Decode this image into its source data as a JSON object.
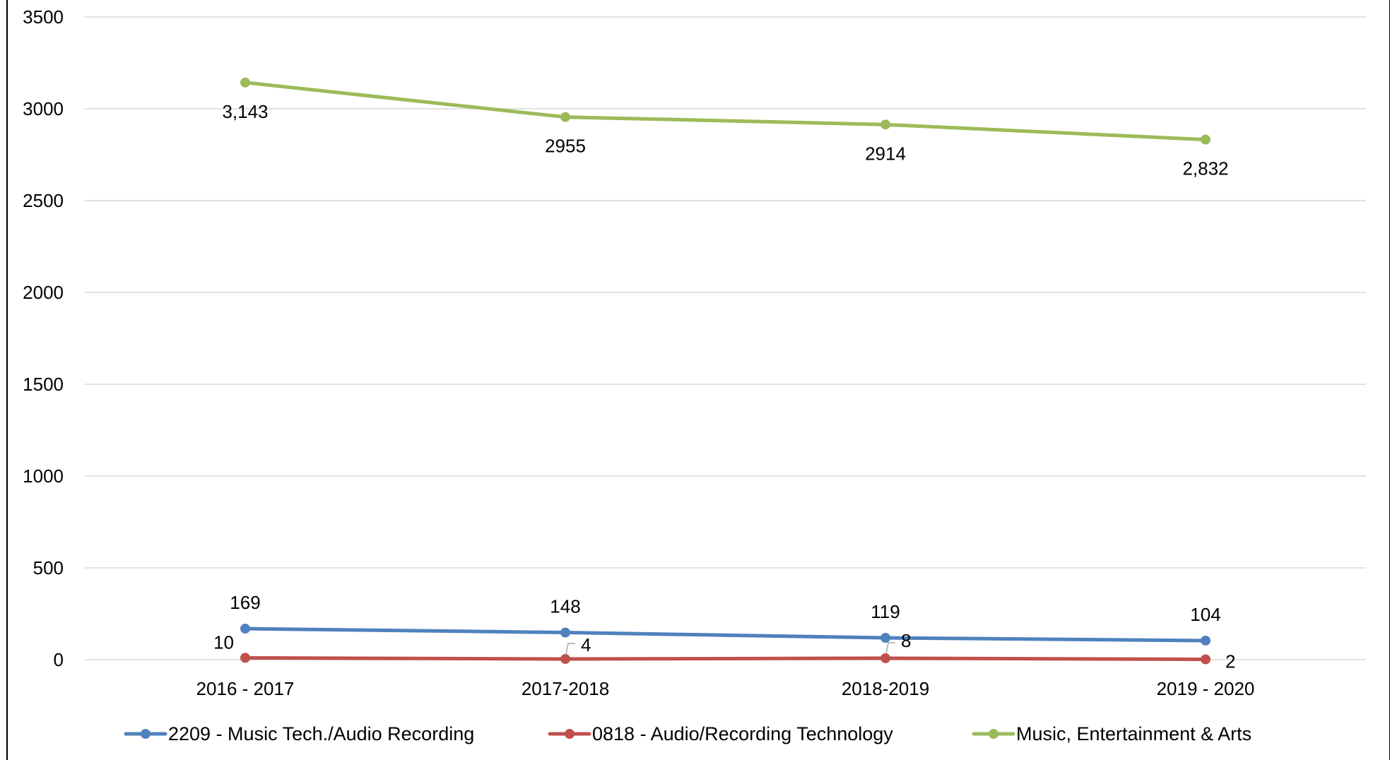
{
  "chart_data": {
    "type": "line",
    "title": "",
    "xlabel": "",
    "ylabel": "",
    "categories": [
      "2016 - 2017",
      "2017-2018",
      "2018-2019",
      "2019 - 2020"
    ],
    "ylim": [
      0,
      3500
    ],
    "yticks": [
      0,
      500,
      1000,
      1500,
      2000,
      2500,
      3000,
      3500
    ],
    "ytick_labels": [
      "0",
      "500",
      "1000",
      "1500",
      "2000",
      "2500",
      "3000",
      "3500"
    ],
    "grid": "horizontal",
    "legend_position": "bottom",
    "series": [
      {
        "name": "2209 - Music Tech./Audio Recording",
        "color": "#4f81bd",
        "values": [
          169,
          148,
          119,
          104
        ],
        "labels": [
          "169",
          "148",
          "119",
          "104"
        ]
      },
      {
        "name": "0818 - Audio/Recording Technology",
        "color": "#c0504d",
        "values": [
          10,
          4,
          8,
          2
        ],
        "labels": [
          "10",
          "4",
          "8",
          "2"
        ]
      },
      {
        "name": "Music, Entertainment & Arts",
        "color": "#9bbb59",
        "values": [
          3143,
          2955,
          2914,
          2832
        ],
        "labels": [
          "3,143",
          "2955",
          "2914",
          "2,832"
        ]
      }
    ]
  }
}
